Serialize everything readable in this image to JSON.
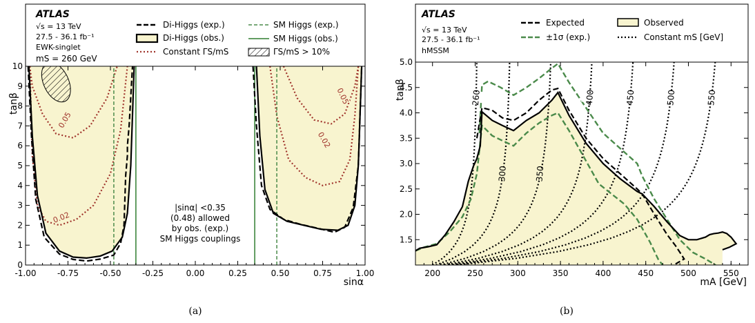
{
  "panel_a": {
    "experiment": "ATLAS",
    "energy": "√s = 13 TeV",
    "lumi": "27.5 - 36.1 fb⁻¹",
    "model": "EWK-singlet",
    "mass": "mS = 260 GeV",
    "legend": [
      "Di-Higgs (exp.)",
      "Di-Higgs (obs.)",
      "Constant ΓS/mS",
      "SM Higgs (exp.)",
      "SM Higgs (obs.)",
      "ΓS/mS > 10%"
    ],
    "annotation": [
      "|sinα| <0.35",
      "(0.48) allowed",
      "by obs. (exp.)",
      "SM Higgs couplings"
    ],
    "ylabel": "tanβ",
    "xlabel": "sinα",
    "caption": "(a)"
  },
  "panel_b": {
    "experiment": "ATLAS",
    "energy": "√s = 13 TeV",
    "lumi": "27.5 - 36.1 fb⁻¹",
    "model": "hMSSM",
    "legend": [
      "Expected",
      "±1σ (exp.)",
      "Observed",
      "Constant mS [GeV]"
    ],
    "ylabel": "tanβ",
    "xlabel": "mA [GeV]",
    "caption": "(b)"
  },
  "chart_data": [
    {
      "type": "line",
      "panel": "a",
      "xlabel": "sinα",
      "ylabel": "tanβ",
      "xlim": [
        -1.0,
        1.0
      ],
      "ylim": [
        0,
        10
      ],
      "xticks": [
        -1.0,
        -0.75,
        -0.5,
        -0.25,
        0.0,
        0.25,
        0.5,
        0.75,
        1.0
      ],
      "xtick_labels": [
        "-1.00",
        "-0.75",
        "-0.50",
        "-0.25",
        "0.00",
        "0.25",
        "0.50",
        "0.75",
        "1.00"
      ],
      "yticks": [
        0,
        1,
        2,
        3,
        4,
        5,
        6,
        7,
        8,
        9,
        10
      ],
      "series": [
        {
          "name": "Di-Higgs (obs.)",
          "segments": [
            {
              "x": [
                -0.98,
                -0.96,
                -0.93,
                -0.88,
                -0.8,
                -0.72,
                -0.64,
                -0.56,
                -0.49,
                -0.43,
                -0.4,
                -0.38,
                -0.36
              ],
              "y": [
                10,
                6.5,
                3.5,
                1.6,
                0.7,
                0.4,
                0.35,
                0.45,
                0.7,
                1.4,
                2.6,
                5.0,
                10
              ]
            },
            {
              "x": [
                0.36,
                0.38,
                0.41,
                0.46,
                0.54,
                0.64,
                0.74,
                0.84,
                0.9,
                0.94,
                0.96,
                0.98
              ],
              "y": [
                10,
                6.5,
                3.8,
                2.6,
                2.2,
                2.0,
                1.8,
                1.75,
                2.0,
                3.0,
                5.0,
                10
              ]
            }
          ]
        },
        {
          "name": "Di-Higgs (exp.)",
          "segments": [
            {
              "x": [
                -0.985,
                -0.965,
                -0.94,
                -0.89,
                -0.8,
                -0.72,
                -0.64,
                -0.56,
                -0.48,
                -0.44,
                -0.42,
                -0.41,
                -0.4,
                -0.4,
                -0.39,
                -0.37
              ],
              "y": [
                10,
                6.5,
                3.3,
                1.4,
                0.55,
                0.28,
                0.2,
                0.3,
                0.5,
                1.1,
                2.0,
                4.5,
                5.5,
                6.0,
                7.0,
                10
              ]
            },
            {
              "x": [
                0.34,
                0.36,
                0.39,
                0.44,
                0.52,
                0.62,
                0.72,
                0.82,
                0.88,
                0.93,
                0.96,
                0.98
              ],
              "y": [
                10,
                7.0,
                4.0,
                2.8,
                2.3,
                2.05,
                1.85,
                1.65,
                1.9,
                2.9,
                5.0,
                10
              ]
            }
          ]
        },
        {
          "name": "Constant ΓS/mS",
          "label": "0.05",
          "segments": [
            {
              "x": [
                -0.975,
                -0.96,
                -0.9,
                -0.82,
                -0.72,
                -0.62,
                -0.52,
                -0.46
              ],
              "y": [
                10,
                9.0,
                7.6,
                6.6,
                6.4,
                7.0,
                8.4,
                10
              ]
            },
            {
              "x": [
                0.52,
                0.6,
                0.7,
                0.8,
                0.88,
                0.94,
                0.96
              ],
              "y": [
                10,
                8.4,
                7.3,
                7.1,
                7.6,
                9.0,
                10
              ]
            }
          ]
        },
        {
          "name": "Constant ΓS/mS",
          "label": "0.02",
          "segments": [
            {
              "x": [
                -0.975,
                -0.96,
                -0.93,
                -0.88,
                -0.8,
                -0.7,
                -0.6,
                -0.5,
                -0.44,
                -0.4
              ],
              "y": [
                10,
                5.5,
                3.0,
                2.2,
                2.0,
                2.3,
                3.0,
                4.6,
                6.8,
                10
              ]
            },
            {
              "x": [
                0.44,
                0.48,
                0.55,
                0.65,
                0.75,
                0.85,
                0.91,
                0.94,
                0.96
              ],
              "y": [
                10,
                7.5,
                5.3,
                4.4,
                4.0,
                4.2,
                5.3,
                7.5,
                10
              ]
            }
          ]
        },
        {
          "name": "SM Higgs (exp.)",
          "x_constant": [
            -0.48,
            0.48
          ]
        },
        {
          "name": "SM Higgs (obs.)",
          "x_constant": [
            -0.35,
            0.35
          ]
        }
      ],
      "annotations": [
        "0.05",
        "0.02",
        "0.05",
        "0.02"
      ]
    },
    {
      "type": "line",
      "panel": "b",
      "xlabel": "mA [GeV]",
      "ylabel": "tanβ",
      "xlim": [
        180,
        570
      ],
      "ylim": [
        1.0,
        5.0
      ],
      "xticks": [
        200,
        250,
        300,
        350,
        400,
        450,
        500,
        550
      ],
      "yticks": [
        1.5,
        2.0,
        2.5,
        3.0,
        3.5,
        4.0,
        4.5,
        5.0
      ],
      "series": [
        {
          "name": "Observed",
          "x": [
            180,
            185,
            195,
            205,
            215,
            225,
            235,
            242,
            248,
            252,
            256,
            258,
            270,
            282,
            295,
            310,
            325,
            340,
            347,
            360,
            380,
            400,
            420,
            440,
            446,
            460,
            475,
            490,
            500,
            510,
            520,
            525,
            530,
            535,
            540,
            545,
            550,
            556,
            548,
            540
          ],
          "y": [
            1.28,
            1.33,
            1.36,
            1.4,
            1.6,
            1.85,
            2.15,
            2.65,
            2.95,
            3.1,
            3.35,
            4.02,
            3.85,
            3.75,
            3.65,
            3.85,
            4.0,
            4.25,
            4.4,
            3.95,
            3.4,
            3.0,
            2.7,
            2.45,
            2.4,
            2.15,
            1.85,
            1.58,
            1.5,
            1.5,
            1.55,
            1.6,
            1.62,
            1.63,
            1.65,
            1.62,
            1.55,
            1.42,
            1.35,
            1.3
          ]
        },
        {
          "name": "Expected",
          "x": [
            252,
            258,
            270,
            282,
            295,
            310,
            325,
            340,
            347,
            360,
            380,
            400,
            420,
            440,
            446,
            460,
            475,
            485,
            492,
            495,
            485
          ],
          "y": [
            3.5,
            4.1,
            4.05,
            3.9,
            3.85,
            4.0,
            4.25,
            4.45,
            4.48,
            4.05,
            3.5,
            3.1,
            2.8,
            2.5,
            2.4,
            2.0,
            1.6,
            1.38,
            1.2,
            1.12,
            1.02
          ]
        },
        {
          "name": "±1σ (exp.) upper",
          "x": [
            255,
            258,
            265,
            280,
            295,
            310,
            325,
            340,
            347,
            360,
            380,
            400,
            420,
            440,
            446,
            460,
            475,
            490,
            505,
            520,
            532
          ],
          "y": [
            3.6,
            4.55,
            4.62,
            4.5,
            4.35,
            4.5,
            4.68,
            4.88,
            4.97,
            4.6,
            4.1,
            3.6,
            3.3,
            3.0,
            2.75,
            2.3,
            1.9,
            1.5,
            1.25,
            1.12,
            1.0
          ]
        },
        {
          "name": "±1σ (exp.) lower",
          "x": [
            180,
            190,
            205,
            220,
            235,
            245,
            252,
            258,
            270,
            282,
            295,
            310,
            325,
            340,
            347,
            360,
            380,
            395,
            410,
            425,
            440,
            455,
            465,
            470
          ],
          "y": [
            1.28,
            1.35,
            1.42,
            1.65,
            1.95,
            2.3,
            2.8,
            3.75,
            3.55,
            3.45,
            3.35,
            3.6,
            3.8,
            3.95,
            4.0,
            3.65,
            3.05,
            2.6,
            2.4,
            2.2,
            1.9,
            1.45,
            1.1,
            1.0
          ]
        }
      ],
      "constant_ms": [
        260,
        300,
        350,
        400,
        450,
        500,
        550
      ],
      "constant_ms_tick_labels": [
        "260",
        "300",
        "350",
        "400",
        "450",
        "500",
        "550"
      ]
    }
  ],
  "colors": {
    "observed_fill": "#f8f4cf",
    "sm_higgs_exp": "#4a8a4a",
    "sm_higgs_obs": "#2e7d2e",
    "constant_width": "#a0342c",
    "one_sigma": "#4a8a4a"
  }
}
